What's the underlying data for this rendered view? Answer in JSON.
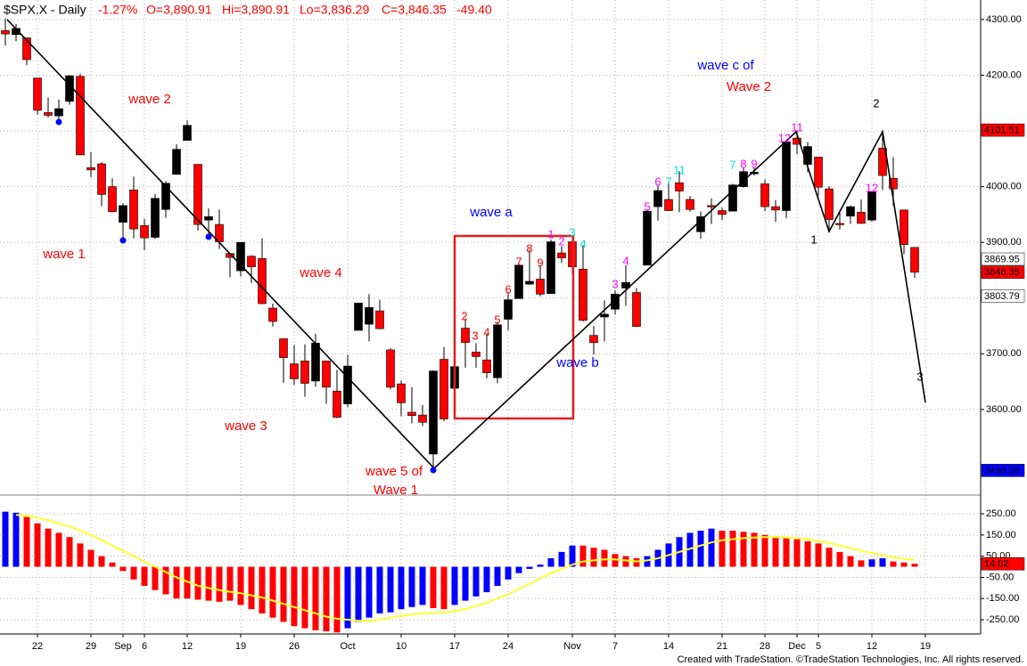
{
  "chart_data": [
    {
      "type": "candlestick",
      "title": "$SPX.X - Daily",
      "quote": [
        "-1.27%",
        "O=3,890.91",
        "Hi=3,890.91",
        "Lo=3,836.29",
        "C=3,846.35",
        "-49.40"
      ],
      "categories": [
        null,
        null,
        null,
        "22",
        null,
        null,
        null,
        null,
        "29",
        null,
        null,
        "Sep",
        null,
        "6",
        null,
        null,
        null,
        "12",
        null,
        null,
        null,
        null,
        "19",
        null,
        null,
        null,
        null,
        "26",
        null,
        null,
        null,
        null,
        "Oct",
        null,
        null,
        null,
        null,
        "10",
        null,
        null,
        null,
        null,
        "17",
        null,
        null,
        null,
        null,
        "24",
        null,
        null,
        null,
        null,
        null,
        "Nov",
        null,
        null,
        null,
        "7",
        null,
        null,
        null,
        null,
        "14",
        null,
        null,
        null,
        null,
        "21",
        null,
        null,
        null,
        "28",
        null,
        null,
        "Dec",
        null,
        "5",
        null,
        null,
        null,
        null,
        "12",
        null,
        null,
        null,
        null,
        "19"
      ],
      "open": [
        4280,
        4273,
        4267,
        4195,
        4133,
        4127,
        4153,
        4198,
        4034,
        4041,
        4000,
        3936,
        3994,
        3930,
        3909,
        3959,
        4022,
        4083,
        4040,
        3940,
        3932,
        3880,
        3849,
        3875,
        3871,
        3782,
        3727,
        3682,
        3687,
        3651,
        3687,
        3633,
        3610,
        3742,
        3753,
        3777,
        3707,
        3646,
        3595,
        3590,
        3520,
        3690,
        3638,
        3746,
        3703,
        3689,
        3657,
        3762,
        3799,
        3825,
        3834,
        3808,
        3881,
        3901,
        3852,
        3733,
        3766,
        3780,
        3818,
        3810,
        3859,
        3964,
        3977,
        4007,
        3977,
        3919,
        3966,
        3957,
        3956,
        4000,
        4023,
        4005,
        3964,
        3957,
        4087,
        4040,
        4053,
        3996,
        3934,
        3947,
        3954,
        3940,
        4069,
        4015,
        3958,
        3890.91,
        null
      ],
      "high": [
        4302,
        4292,
        4267,
        4195,
        4160,
        4156,
        4200,
        4203,
        4062,
        4044,
        4015,
        3970,
        4018,
        3942,
        3987,
        4010,
        4076,
        4119,
        4040,
        3961,
        3959,
        3880,
        3900,
        3877,
        3907,
        3790,
        3727,
        3716,
        3717,
        3736,
        3687,
        3671,
        3698,
        3791,
        3807,
        3797,
        3710,
        3652,
        3640,
        3608,
        3670,
        3712,
        3686,
        3763,
        3719,
        3736,
        3757,
        3810,
        3862,
        3887,
        3859,
        3905,
        3893,
        3911,
        3895,
        3750,
        3796,
        3814,
        3859,
        3818,
        3959,
        4002,
        4009,
        4028,
        3983,
        3955,
        3979,
        3962,
        4005,
        4034,
        4035,
        4013,
        3976,
        4080,
        4101,
        4080,
        4053,
        4001,
        3957,
        3966,
        3977,
        3991,
        4101,
        4053,
        3959,
        3890.91,
        null
      ],
      "low": [
        4253,
        4261,
        4218,
        4129,
        4124,
        4119,
        4147,
        4057,
        4017,
        3965,
        3954,
        3903,
        3907,
        3886,
        3906,
        3944,
        4022,
        4083,
        3921,
        3913,
        3888,
        3837,
        3839,
        3827,
        3789,
        3749,
        3648,
        3644,
        3623,
        3641,
        3610,
        3584,
        3604,
        3742,
        3722,
        3744,
        3636,
        3588,
        3575,
        3570,
        3490.58,
        3579,
        3638,
        3675,
        3675,
        3656,
        3647,
        3742,
        3799,
        3824,
        3803,
        3808,
        3863,
        3843,
        3758,
        3699,
        3722,
        3770,
        3786,
        3748,
        3859,
        3939,
        3956,
        3954,
        3955,
        3906,
        3933,
        3940,
        3956,
        3998,
        4020,
        3956,
        3937,
        3943,
        4058,
        4026,
        3984,
        3918,
        3923,
        3933,
        3933,
        3937,
        3994,
        3966,
        3879,
        3836.29,
        null
      ],
      "close": [
        4274,
        4284,
        4228,
        4137,
        4128,
        4140,
        4199,
        4057,
        4030,
        3986,
        3955,
        3966,
        3924,
        3908,
        3979,
        4006,
        4067,
        4110,
        3932,
        3946,
        3901,
        3873,
        3900,
        3856,
        3790,
        3758,
        3693,
        3655,
        3647,
        3719,
        3640,
        3586,
        3678,
        3791,
        3783,
        3745,
        3640,
        3612,
        3589,
        3577,
        3669,
        3583,
        3677,
        3720,
        3695,
        3666,
        3752,
        3797,
        3859,
        3830,
        3807,
        3901,
        3872,
        3856,
        3760,
        3720,
        3771,
        3807,
        3828,
        3749,
        3956,
        3993,
        3957,
        3992,
        3959,
        3946,
        3965,
        3950,
        4003,
        4027,
        4026,
        3964,
        3958,
        4080,
        4076,
        4072,
        3999,
        3941,
        3933,
        3964,
        3934,
        3991,
        4020,
        3996,
        3896,
        3846.35,
        null
      ],
      "up_color": "#000000",
      "down_color": "#ff0000",
      "ylim": [
        3448,
        4327
      ],
      "yticks": [
        {
          "value": 3600,
          "label": "3600.00"
        },
        {
          "value": 3700,
          "label": "3700.00"
        },
        {
          "value": 3800,
          "label": "3800.00"
        },
        {
          "value": 3900,
          "label": "3900.00"
        },
        {
          "value": 4000,
          "label": "4000.00"
        },
        {
          "value": 4100,
          "label": "4100.00"
        },
        {
          "value": 4200,
          "label": "4200.00"
        },
        {
          "value": 4300,
          "label": "4300.00"
        }
      ],
      "grid": true,
      "price_flags": [
        {
          "value": 4101.51,
          "color": "#ff0000",
          "text_color": "#ffffff"
        },
        {
          "value": 3869.95,
          "color": "#ffffff",
          "text_color": "#000000"
        },
        {
          "value": 3803.79,
          "color": "#ffffff",
          "text_color": "#000000"
        }
      ],
      "last_flag_color": "#ff0000",
      "low_flag_color": "#0000ff",
      "wave_labels": [
        {
          "text": "wave 2",
          "color": "#ff0000"
        },
        {
          "text": "wave 1",
          "color": "#ff0000"
        },
        {
          "text": "wave 4",
          "color": "#ff0000"
        },
        {
          "text": "wave 3",
          "color": "#ff0000"
        },
        {
          "text": "wave 5 of",
          "color": "#ff0000"
        },
        {
          "text": "Wave 1",
          "color": "#ff0000"
        },
        {
          "text": "wave a",
          "color": "#0000ff"
        },
        {
          "text": "wave b",
          "color": "#0000ff"
        },
        {
          "text": "wave c of",
          "color": "#0000ff"
        },
        {
          "text": "Wave 2",
          "color": "#ff0000"
        },
        {
          "text": "1",
          "color": "#000000"
        },
        {
          "text": "2",
          "color": "#000000"
        },
        {
          "text": "3",
          "color": "#000000"
        }
      ],
      "counts": [
        {
          "text": "2",
          "color": "#ff0000"
        },
        {
          "text": "3",
          "color": "#ff0000"
        },
        {
          "text": "4",
          "color": "#ff0000"
        },
        {
          "text": "5",
          "color": "#ff0000"
        },
        {
          "text": "6",
          "color": "#ff0000"
        },
        {
          "text": "7",
          "color": "#ff0000"
        },
        {
          "text": "8",
          "color": "#ff0000"
        },
        {
          "text": "9",
          "color": "#ff0000"
        },
        {
          "text": "1",
          "color": "#ff00ff"
        },
        {
          "text": "2",
          "color": "#ff00ff"
        },
        {
          "text": "3",
          "color": "#00dddd"
        },
        {
          "text": "4",
          "color": "#00dddd"
        },
        {
          "text": "3",
          "color": "#ff00ff"
        },
        {
          "text": "4",
          "color": "#ff00ff"
        },
        {
          "text": "5",
          "color": "#ff00ff"
        },
        {
          "text": "6",
          "color": "#ff00ff"
        },
        {
          "text": "7",
          "color": "#00dddd"
        },
        {
          "text": "11",
          "color": "#00dddd"
        },
        {
          "text": "7",
          "color": "#00dddd"
        },
        {
          "text": "8",
          "color": "#ff00ff"
        },
        {
          "text": "9",
          "color": "#ff00ff"
        },
        {
          "text": "12",
          "color": "#ff00ff"
        },
        {
          "text": "11",
          "color": "#ff00ff"
        },
        {
          "text": "12",
          "color": "#ff00ff"
        }
      ]
    },
    {
      "type": "bar",
      "values": [
        260,
        255,
        235,
        205,
        180,
        160,
        140,
        110,
        80,
        50,
        20,
        -20,
        -60,
        -90,
        -110,
        -130,
        -150,
        -150,
        -155,
        -160,
        -165,
        -160,
        -180,
        -200,
        -220,
        -240,
        -260,
        -280,
        -290,
        -300,
        -305,
        -310,
        -290,
        -260,
        -240,
        -220,
        -215,
        -200,
        -190,
        -180,
        -195,
        -200,
        -180,
        -160,
        -140,
        -120,
        -90,
        -60,
        -30,
        -10,
        10,
        40,
        70,
        100,
        100,
        90,
        80,
        60,
        50,
        40,
        50,
        80,
        110,
        140,
        160,
        170,
        180,
        170,
        170,
        165,
        160,
        150,
        140,
        140,
        130,
        120,
        110,
        90,
        70,
        50,
        30,
        35,
        40,
        25,
        20,
        14.02,
        null
      ],
      "colors": [
        "#0000ff",
        "#0000ff",
        "#ff0000",
        "#ff0000",
        "#ff0000",
        "#ff0000",
        "#ff0000",
        "#ff0000",
        "#ff0000",
        "#ff0000",
        "#ff0000",
        "#ff0000",
        "#ff0000",
        "#ff0000",
        "#ff0000",
        "#ff0000",
        "#ff0000",
        "#ff0000",
        "#ff0000",
        "#ff0000",
        "#ff0000",
        "#ff0000",
        "#ff0000",
        "#ff0000",
        "#ff0000",
        "#ff0000",
        "#ff0000",
        "#ff0000",
        "#ff0000",
        "#ff0000",
        "#ff0000",
        "#ff0000",
        "#0000ff",
        "#0000ff",
        "#0000ff",
        "#0000ff",
        "#0000ff",
        "#0000ff",
        "#0000ff",
        "#0000ff",
        "#ff0000",
        "#ff0000",
        "#0000ff",
        "#0000ff",
        "#0000ff",
        "#0000ff",
        "#0000ff",
        "#0000ff",
        "#0000ff",
        "#0000ff",
        "#0000ff",
        "#0000ff",
        "#0000ff",
        "#0000ff",
        "#ff0000",
        "#ff0000",
        "#ff0000",
        "#ff0000",
        "#ff0000",
        "#ff0000",
        "#0000ff",
        "#0000ff",
        "#0000ff",
        "#0000ff",
        "#0000ff",
        "#0000ff",
        "#0000ff",
        "#ff0000",
        "#ff0000",
        "#ff0000",
        "#ff0000",
        "#ff0000",
        "#ff0000",
        "#ff0000",
        "#ff0000",
        "#ff0000",
        "#ff0000",
        "#ff0000",
        "#ff0000",
        "#ff0000",
        "#ff0000",
        "#0000ff",
        "#0000ff",
        "#ff0000",
        "#ff0000",
        "#ff0000",
        null
      ],
      "signal": {
        "color": "#ffff33",
        "values": [
          null,
          245,
          240,
          232,
          220,
          205,
          190,
          170,
          150,
          125,
          100,
          75,
          50,
          25,
          0,
          -25,
          -50,
          -70,
          -90,
          -100,
          -110,
          -118,
          -125,
          -135,
          -145,
          -160,
          -175,
          -190,
          -205,
          -220,
          -235,
          -245,
          -250,
          -255,
          -255,
          -250,
          -240,
          -232,
          -225,
          -220,
          -218,
          -215,
          -210,
          -200,
          -185,
          -170,
          -150,
          -130,
          -105,
          -80,
          -55,
          -30,
          -10,
          10,
          25,
          30,
          35,
          35,
          30,
          25,
          30,
          40,
          55,
          70,
          85,
          100,
          115,
          125,
          130,
          135,
          138,
          140,
          140,
          138,
          135,
          130,
          122,
          112,
          100,
          88,
          75,
          65,
          55,
          45,
          38,
          32,
          null
        ]
      },
      "ylim": [
        -317,
        330
      ],
      "yticks": [
        {
          "value": 250,
          "label": "250.00"
        },
        {
          "value": 150,
          "label": "150.00"
        },
        {
          "value": 50,
          "label": "50.00"
        },
        {
          "value": -50,
          "label": "-50.00"
        },
        {
          "value": -150,
          "label": "-150.00"
        },
        {
          "value": -250,
          "label": "-250.00"
        }
      ],
      "last_flag_color": "#ff0000"
    }
  ],
  "footer": "Created with TradeStation. ©TradeStation Technologies, Inc. All rights reserved."
}
